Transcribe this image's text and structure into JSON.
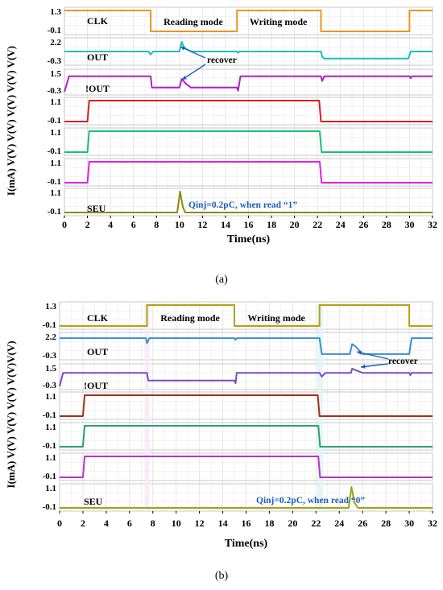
{
  "chart_data": [
    {
      "type": "line",
      "panel_caption": "(a)",
      "xlabel": "Time(ns)",
      "x_ticks": [
        "0",
        "2",
        "4",
        "6",
        "8",
        "10",
        "12",
        "14",
        "16",
        "18",
        "20",
        "22",
        "24",
        "26",
        "28",
        "30",
        "32"
      ],
      "xlim": [
        0,
        32
      ],
      "ylabel_text": "I(mA) V(V) V(V) V(V) V(V) V(V)",
      "mode_labels": [
        "Reading mode",
        "Writing mode"
      ],
      "annotations": {
        "recover": "recover",
        "qinj": "Qinj=0.2pC, when read “1”"
      },
      "colors": {
        "CLK": "#f0931e",
        "OUT": "#18c0c0",
        "NOT_OUT": "#b020c8",
        "R1": "#d42020",
        "R2": "#18c070",
        "R3": "#e020e0",
        "SEU": "#8a8a08"
      },
      "series": [
        {
          "name": "CLK",
          "ylim_labels": [
            "1.3",
            "-0.1"
          ],
          "ylim": [
            -0.1,
            1.3
          ],
          "x": [
            0,
            7.5,
            7.5,
            15,
            15,
            22.3,
            22.3,
            30,
            30,
            32
          ],
          "y": [
            1.3,
            1.3,
            -0.1,
            -0.1,
            1.3,
            1.3,
            -0.1,
            -0.1,
            1.3,
            1.3
          ]
        },
        {
          "name": "OUT",
          "ylim_labels": [
            "2.2",
            "-0.3"
          ],
          "ylim": [
            -0.3,
            2.2
          ],
          "x": [
            0,
            7.3,
            7.5,
            7.7,
            10,
            10.2,
            10.4,
            11,
            15,
            15.1,
            15.2,
            22.3,
            22.4,
            22.6,
            29.9,
            30.1,
            32
          ],
          "y": [
            0.95,
            0.95,
            0.6,
            0.95,
            0.95,
            2.1,
            1.4,
            0.95,
            0.95,
            0.8,
            0.95,
            0.95,
            0.35,
            0.1,
            0.1,
            0.95,
            0.95
          ]
        },
        {
          "name": "!OUT",
          "ylim_labels": [
            "1.5",
            "-0.3"
          ],
          "ylim": [
            -0.3,
            1.5
          ],
          "x": [
            0,
            0.4,
            7.5,
            7.6,
            10,
            10.2,
            10.6,
            11,
            15,
            15.1,
            15.3,
            22.3,
            22.4,
            22.6,
            30,
            30.1,
            30.2,
            32
          ],
          "y": [
            -0.3,
            1.15,
            1.15,
            0.1,
            0.1,
            0.9,
            0.4,
            0.1,
            0.1,
            -0.2,
            1.15,
            1.15,
            0.7,
            1.15,
            1.15,
            0.95,
            1.15,
            1.15
          ]
        },
        {
          "name": "",
          "ylim_labels": [
            "1.1",
            "-0.1"
          ],
          "ylim": [
            -0.1,
            1.1
          ],
          "x": [
            0,
            2,
            2.15,
            22.15,
            22.3,
            32
          ],
          "y": [
            -0.1,
            -0.1,
            1.1,
            1.1,
            -0.1,
            -0.1
          ]
        },
        {
          "name": "",
          "ylim_labels": [
            "1.1",
            "-0.1"
          ],
          "ylim": [
            -0.1,
            1.1
          ],
          "x": [
            0,
            2,
            2.15,
            22.2,
            22.35,
            32
          ],
          "y": [
            -0.1,
            -0.1,
            1.1,
            1.1,
            -0.1,
            -0.1
          ]
        },
        {
          "name": "",
          "ylim_labels": [
            "1.1",
            "-0.1"
          ],
          "ylim": [
            -0.1,
            1.1
          ],
          "x": [
            0,
            2,
            2.15,
            22.2,
            22.35,
            32
          ],
          "y": [
            -0.1,
            -0.1,
            1.1,
            1.1,
            -0.1,
            -0.1
          ]
        },
        {
          "name": "SEU",
          "ylim_labels": [
            "1.1",
            "-0.1"
          ],
          "ylim": [
            -0.1,
            1.1
          ],
          "x": [
            0,
            9.8,
            10.05,
            10.3,
            10.5,
            32
          ],
          "y": [
            -0.1,
            -0.1,
            1.1,
            0.2,
            -0.1,
            -0.1
          ]
        }
      ]
    },
    {
      "type": "line",
      "panel_caption": "(b)",
      "xlabel": "Time(ns)",
      "x_ticks": [
        "0",
        "2",
        "4",
        "6",
        "8",
        "10",
        "12",
        "14",
        "16",
        "18",
        "20",
        "22",
        "24",
        "26",
        "28",
        "30",
        "32"
      ],
      "xlim": [
        0,
        32
      ],
      "ylabel_text": "I(mA) V(V) V(V) V(V) V(V)V(V)",
      "mode_labels": [
        "Reading mode",
        "Writing mode"
      ],
      "annotations": {
        "recover": "recover",
        "qinj": "Qinj=0.2pC, when read “0”"
      },
      "colors": {
        "CLK": "#b8a010",
        "OUT": "#3a8ed0",
        "NOT_OUT": "#7a4ac8",
        "R1": "#a0301c",
        "R2": "#2aa070",
        "R3": "#c030c8",
        "SEU": "#a0a010"
      },
      "series": [
        {
          "name": "CLK",
          "ylim_labels": [
            "1.3",
            "-0.1"
          ],
          "ylim": [
            -0.1,
            1.3
          ],
          "x": [
            0,
            7.5,
            7.5,
            15,
            15,
            22.3,
            22.3,
            30,
            30,
            32
          ],
          "y": [
            -0.1,
            -0.1,
            1.3,
            1.3,
            -0.1,
            -0.1,
            1.3,
            1.3,
            -0.1,
            -0.1
          ]
        },
        {
          "name": "OUT",
          "ylim_labels": [
            "2.2",
            "-0.3"
          ],
          "ylim": [
            -0.3,
            2.2
          ],
          "x": [
            0,
            7.4,
            7.5,
            7.7,
            15,
            15.1,
            15.2,
            22.3,
            22.5,
            24.9,
            25.1,
            25.4,
            26,
            30,
            30.2,
            32
          ],
          "y": [
            1.9,
            1.9,
            1.3,
            1.9,
            1.9,
            1.7,
            1.9,
            1.9,
            0.0,
            0.0,
            1.2,
            0.9,
            0.0,
            0.0,
            1.9,
            1.9
          ]
        },
        {
          "name": "!OUT",
          "ylim_labels": [
            "1.5",
            "-0.3"
          ],
          "ylim": [
            -0.3,
            1.5
          ],
          "x": [
            0,
            0.3,
            7.5,
            7.6,
            15,
            15.1,
            15.2,
            22.3,
            22.5,
            22.8,
            25,
            25.1,
            26,
            30,
            30.1,
            30.2,
            32
          ],
          "y": [
            -0.3,
            0.95,
            0.95,
            0.25,
            0.25,
            0.0,
            0.95,
            0.95,
            0.6,
            0.95,
            0.95,
            1.35,
            0.95,
            0.95,
            0.75,
            0.95,
            0.95
          ]
        },
        {
          "name": "",
          "ylim_labels": [
            "1.1",
            "-0.1"
          ],
          "ylim": [
            -0.1,
            1.1
          ],
          "x": [
            0,
            2,
            2.15,
            22.15,
            22.3,
            32
          ],
          "y": [
            -0.1,
            -0.1,
            1.1,
            1.1,
            -0.1,
            -0.1
          ]
        },
        {
          "name": "",
          "ylim_labels": [
            "1.1",
            "-0.1"
          ],
          "ylim": [
            -0.1,
            1.1
          ],
          "x": [
            0,
            2,
            2.15,
            22.2,
            22.35,
            32
          ],
          "y": [
            -0.1,
            -0.1,
            1.1,
            1.1,
            -0.1,
            -0.1
          ]
        },
        {
          "name": "",
          "ylim_labels": [
            "1.1",
            "-0.1"
          ],
          "ylim": [
            -0.1,
            1.1
          ],
          "x": [
            0,
            2,
            2.15,
            22.2,
            22.35,
            32
          ],
          "y": [
            -0.1,
            -0.1,
            1.1,
            1.1,
            -0.1,
            -0.1
          ]
        },
        {
          "name": "SEU",
          "ylim_labels": [
            "1.1",
            "-0.1"
          ],
          "ylim": [
            -0.1,
            1.1
          ],
          "x": [
            0,
            24.8,
            25.05,
            25.3,
            25.6,
            32
          ],
          "y": [
            -0.1,
            -0.1,
            1.1,
            0.2,
            -0.1,
            -0.1
          ]
        }
      ]
    }
  ]
}
